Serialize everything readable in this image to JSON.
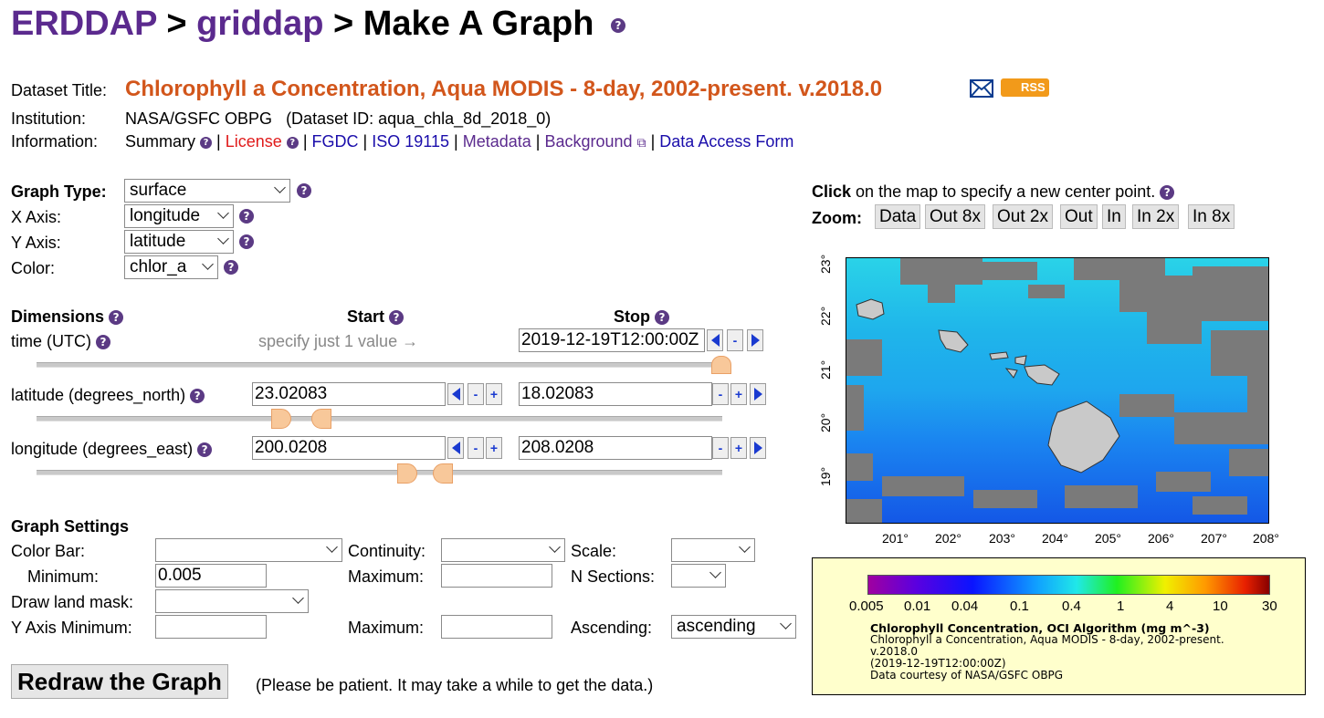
{
  "breadcrumb": {
    "erddap": "ERDDAP",
    "sep1": ">",
    "griddap": "griddap",
    "sep2": ">",
    "page": "Make A Graph"
  },
  "help_glyph": "?",
  "dataset": {
    "title_label": "Dataset Title:",
    "title": "Chlorophyll a Concentration, Aqua MODIS - 8-day, 2002-present. v.2018.0",
    "rss": "RSS",
    "institution_label": "Institution:",
    "institution": "NASA/GSFC OBPG",
    "dataset_id": "(Dataset ID: aqua_chla_8d_2018_0)",
    "information_label": "Information:",
    "links": {
      "summary": "Summary",
      "license": "License",
      "fgdc": "FGDC",
      "iso": "ISO 19115",
      "metadata": "Metadata",
      "background": "Background",
      "data_access": "Data Access Form"
    },
    "sep": "|"
  },
  "graph": {
    "type_label": "Graph Type:",
    "type_value": "surface",
    "x_label": "X Axis:",
    "x_value": "longitude",
    "y_label": "Y Axis:",
    "y_value": "latitude",
    "color_label": "Color:",
    "color_value": "chlor_a"
  },
  "dimensions": {
    "header": "Dimensions",
    "start_header": "Start",
    "stop_header": "Stop",
    "time": {
      "label": "time (UTC)",
      "start_hint": "specify just 1 value →",
      "stop": "2019-12-19T12:00:00Z"
    },
    "latitude": {
      "label": "latitude (degrees_north)",
      "start": "23.02083",
      "stop": "18.02083"
    },
    "longitude": {
      "label": "longitude (degrees_east)",
      "start": "200.0208",
      "stop": "208.0208"
    },
    "minus": "-",
    "plus": "+"
  },
  "settings": {
    "header": "Graph Settings",
    "color_bar_label": "Color Bar:",
    "color_bar_value": "",
    "continuity_label": "Continuity:",
    "continuity_value": "",
    "scale_label": "Scale:",
    "scale_value": "",
    "minimum_label": "Minimum:",
    "minimum_value": "0.005",
    "maximum_label": "Maximum:",
    "maximum_value": "",
    "nsections_label": "N Sections:",
    "nsections_value": "",
    "land_mask_label": "Draw land mask:",
    "land_mask_value": "",
    "y_min_label": "Y Axis Minimum:",
    "y_min_value": "",
    "y_max_label": "Maximum:",
    "y_max_value": "",
    "ascending_label": "Ascending:",
    "ascending_value": "ascending"
  },
  "redraw": {
    "button": "Redraw the Graph",
    "note": "(Please be patient. It may take a while to get the data.)"
  },
  "map": {
    "click_bold": "Click",
    "click_text": "on the map to specify a new center point.",
    "zoom_label": "Zoom:",
    "zoom_buttons": [
      "Data",
      "Out 8x",
      "Out 2x",
      "Out",
      "In",
      "In 2x",
      "In 8x"
    ],
    "y_ticks": [
      "23°",
      "22°",
      "21°",
      "20°",
      "19°"
    ],
    "x_ticks": [
      "201°",
      "202°",
      "203°",
      "204°",
      "205°",
      "206°",
      "207°",
      "208°"
    ]
  },
  "legend": {
    "ticks": [
      "0.005",
      "0.01",
      "0.04",
      "0.1",
      "0.4",
      "1",
      "4",
      "10",
      "30"
    ],
    "var_title": "Chlorophyll Concentration, OCI Algorithm (mg m^-3)",
    "line1": "Chlorophyll a Concentration, Aqua MODIS - 8-day, 2002-present.",
    "line2": "v.2018.0",
    "line3": "(2019-12-19T12:00:00Z)",
    "line4": "Data courtesy of NASA/GSFC OBPG"
  },
  "colors": {
    "link": "#5b2a8e",
    "title": "#d2561b",
    "license": "#e01b1b",
    "thumb": "#f8c89a"
  }
}
